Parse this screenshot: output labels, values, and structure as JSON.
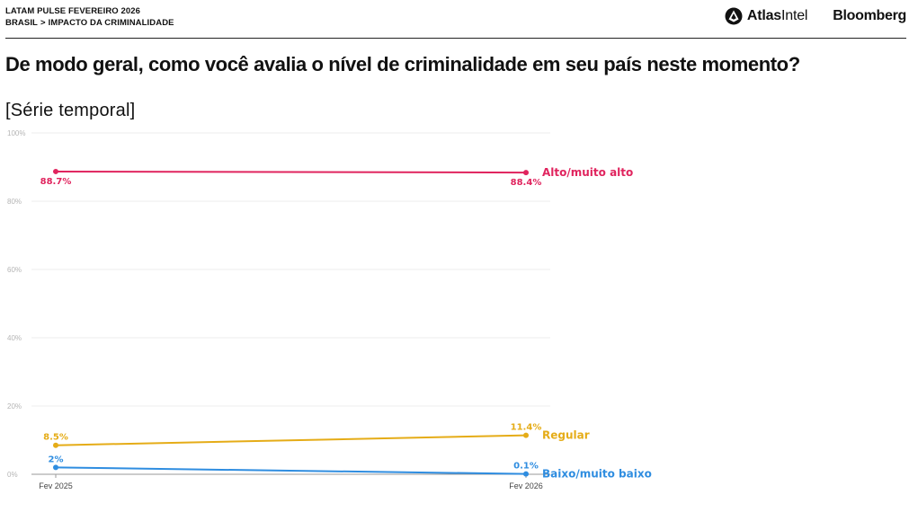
{
  "header": {
    "line1": "LATAM PULSE FEVEREIRO 2026",
    "crumb_country": "BRASIL",
    "crumb_separator": ">",
    "crumb_topic": "IMPACTO DA CRIMINALIDADE"
  },
  "brands": {
    "atlas_bold": "Atlas",
    "atlas_regular": "Intel",
    "bloomberg": "Bloomberg"
  },
  "title": "De modo geral, como você avalia o nível de criminalidade em seu país neste momento?",
  "subtitle": "[Série temporal]",
  "chart_data": {
    "type": "line",
    "x": [
      "Fev 2025",
      "Fev 2026"
    ],
    "ylim": [
      0,
      100
    ],
    "yticks": [
      0,
      20,
      40,
      60,
      80,
      100
    ],
    "ytick_labels": [
      "0%",
      "20%",
      "40%",
      "60%",
      "80%",
      "100%"
    ],
    "grid": true,
    "series": [
      {
        "name": "Alto/muito alto",
        "values": [
          88.7,
          88.4
        ],
        "labels": [
          "88.7%",
          "88.4%"
        ],
        "color": "#e0245e",
        "label_pos": "below"
      },
      {
        "name": "Regular",
        "values": [
          8.5,
          11.4
        ],
        "labels": [
          "8.5%",
          "11.4%"
        ],
        "color": "#e5ac17",
        "label_pos": "above"
      },
      {
        "name": "Baixo/muito baixo",
        "values": [
          2,
          0.1
        ],
        "labels": [
          "2%",
          "0.1%"
        ],
        "color": "#2f8de0",
        "label_pos": "above"
      }
    ]
  }
}
